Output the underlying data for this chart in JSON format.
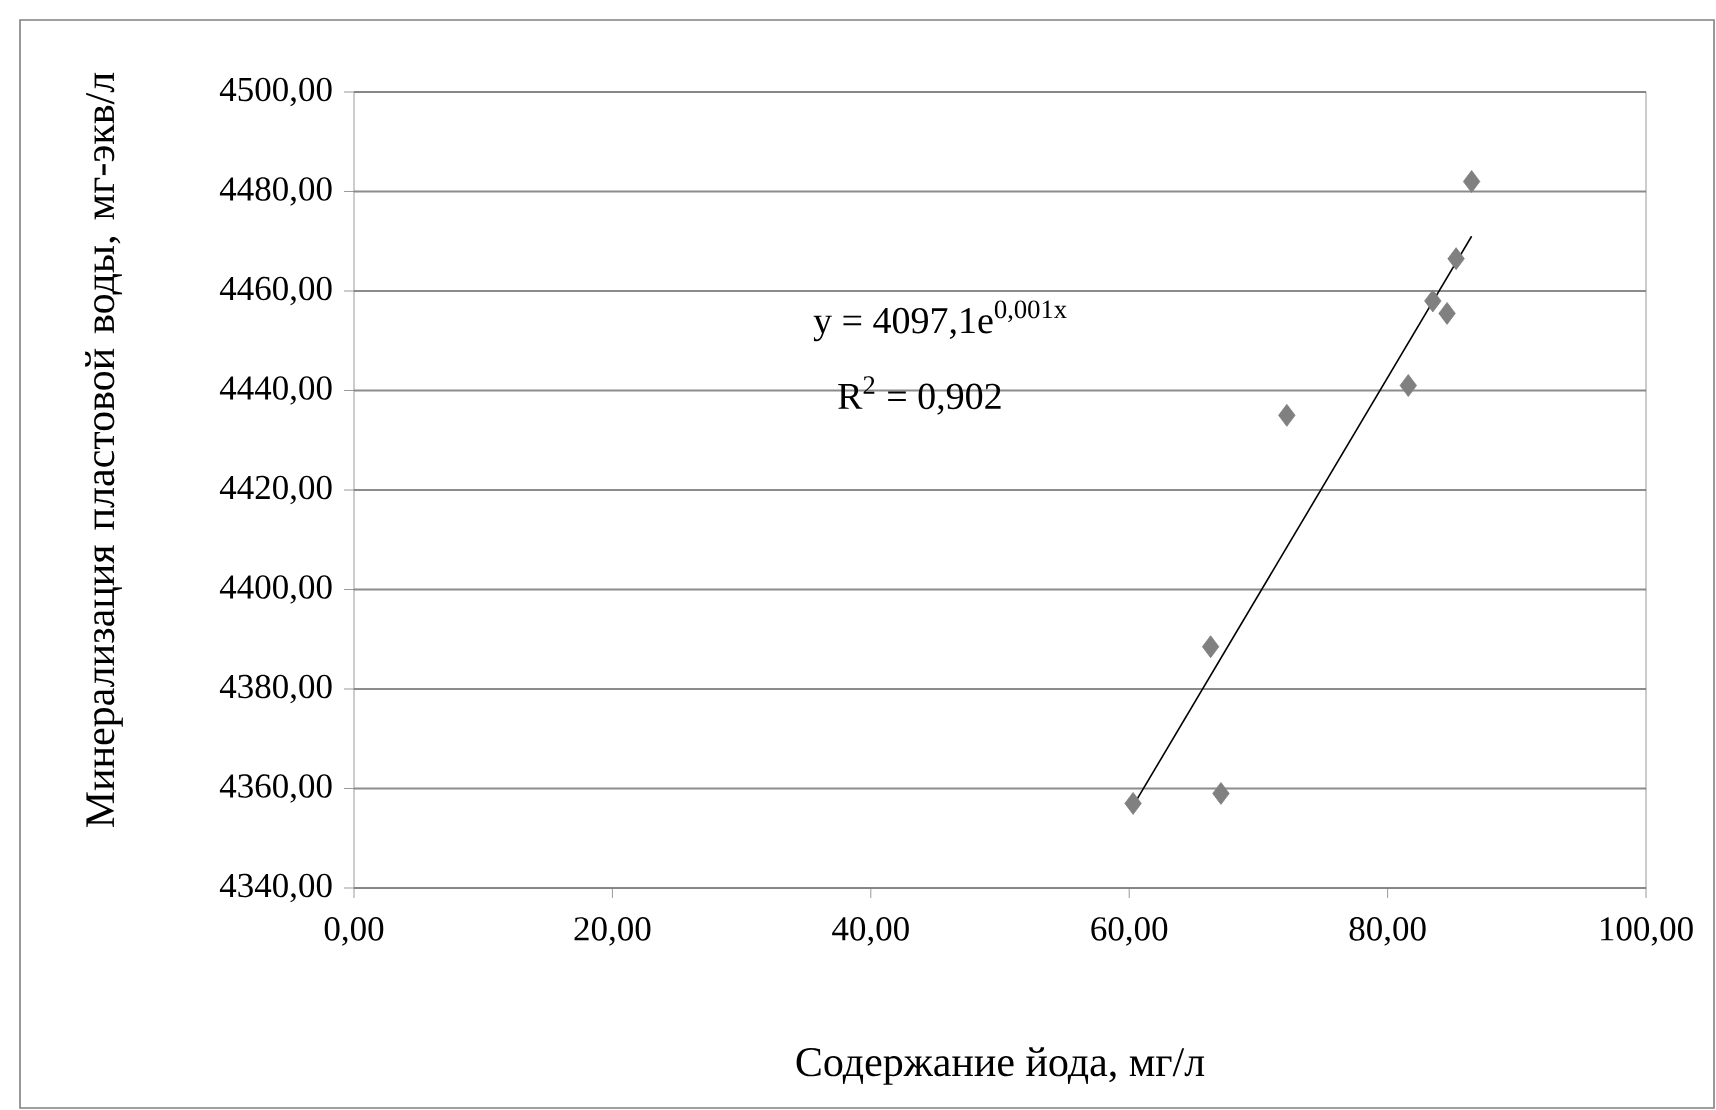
{
  "chart_data": {
    "type": "scatter",
    "xlabel": "Содержание йода, мг/л",
    "ylabel": "Минерализация пластовой воды, мг-экв/л",
    "xlim": [
      0,
      100
    ],
    "ylim": [
      4340,
      4500
    ],
    "xticks": [
      {
        "value": 0,
        "label": "0,00"
      },
      {
        "value": 20,
        "label": "20,00"
      },
      {
        "value": 40,
        "label": "40,00"
      },
      {
        "value": 60,
        "label": "60,00"
      },
      {
        "value": 80,
        "label": "80,00"
      },
      {
        "value": 100,
        "label": "100,00"
      }
    ],
    "yticks": [
      {
        "value": 4340,
        "label": "4340,00"
      },
      {
        "value": 4360,
        "label": "4360,00"
      },
      {
        "value": 4380,
        "label": "4380,00"
      },
      {
        "value": 4400,
        "label": "4400,00"
      },
      {
        "value": 4420,
        "label": "4420,00"
      },
      {
        "value": 4440,
        "label": "4440,00"
      },
      {
        "value": 4460,
        "label": "4460,00"
      },
      {
        "value": 4480,
        "label": "4480,00"
      },
      {
        "value": 4500,
        "label": "4500,00"
      }
    ],
    "grid": "y",
    "series": [
      {
        "marker": "diamond",
        "color": "#808080",
        "x": [
          60.3,
          66.3,
          67.1,
          72.2,
          81.6,
          83.5,
          84.6,
          85.3,
          86.5
        ],
        "values": [
          4357,
          4388.5,
          4359,
          4435,
          4441,
          4458,
          4455.5,
          4466.5,
          4482
        ]
      },
      {
        "type": "line",
        "marker": "none",
        "line_style": "solid",
        "color": "#000000",
        "x": [
          60.3,
          86.5
        ],
        "values": [
          4356.5,
          4471
        ]
      }
    ],
    "annotations": [
      "y = 4097,1e$^{0,001x}$",
      "R$^{2}$ = 0,902"
    ]
  }
}
